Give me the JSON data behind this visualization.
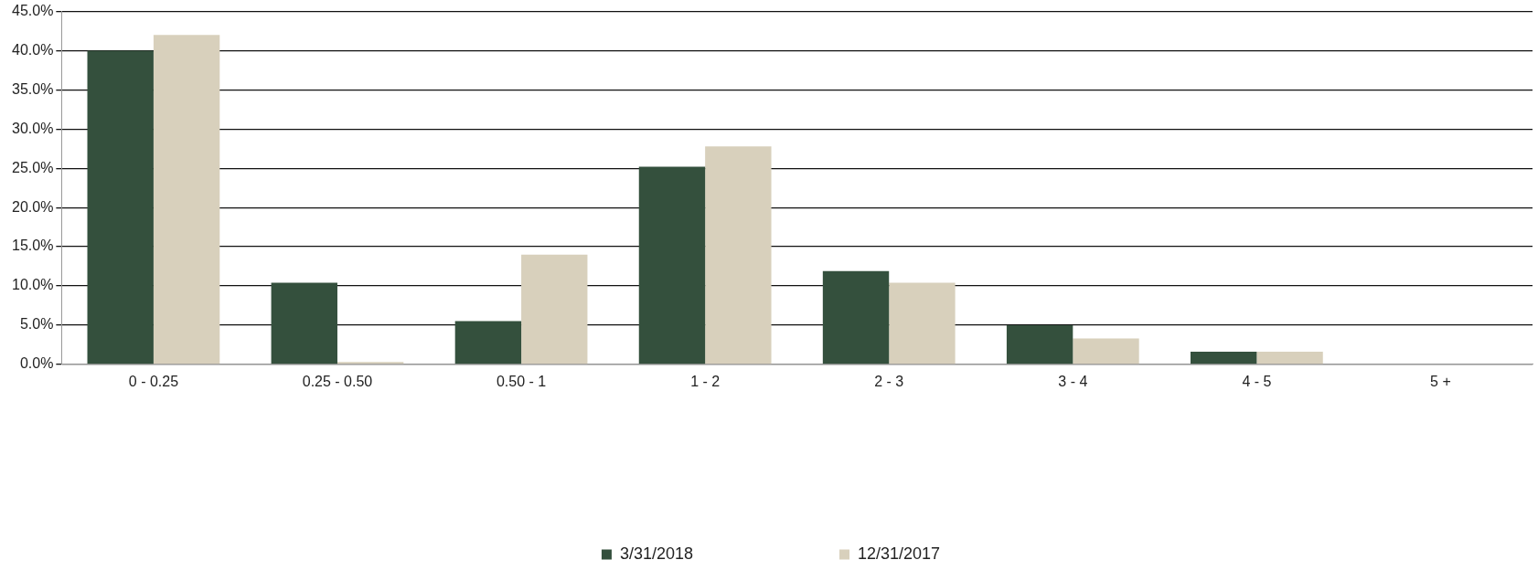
{
  "chart_data": {
    "type": "bar",
    "categories": [
      "0 - 0.25",
      "0.25 - 0.50",
      "0.50 - 1",
      "1 - 2",
      "2 - 3",
      "3 - 4",
      "4 - 5",
      "5 +"
    ],
    "series": [
      {
        "name": "3/31/2018",
        "color": "#34503d",
        "values": [
          40.0,
          10.4,
          5.5,
          25.2,
          11.9,
          5.0,
          1.6,
          0
        ]
      },
      {
        "name": "12/31/2017",
        "color": "#d8d0bc",
        "values": [
          42.0,
          0.3,
          14.0,
          27.8,
          10.4,
          3.3,
          1.6,
          0
        ]
      }
    ],
    "ylim": [
      0,
      45
    ],
    "yticks": [
      {
        "value": 0,
        "label": "0.0%"
      },
      {
        "value": 5,
        "label": "5.0%"
      },
      {
        "value": 10,
        "label": "10.0%"
      },
      {
        "value": 15,
        "label": "15.0%"
      },
      {
        "value": 20,
        "label": "20.0%"
      },
      {
        "value": 25,
        "label": "25.0%"
      },
      {
        "value": 30,
        "label": "30.0%"
      },
      {
        "value": 35,
        "label": "35.0%"
      },
      {
        "value": 40,
        "label": "40.0%"
      },
      {
        "value": 45,
        "label": "45.0%"
      }
    ],
    "grid": "y",
    "legend": "bottom"
  }
}
